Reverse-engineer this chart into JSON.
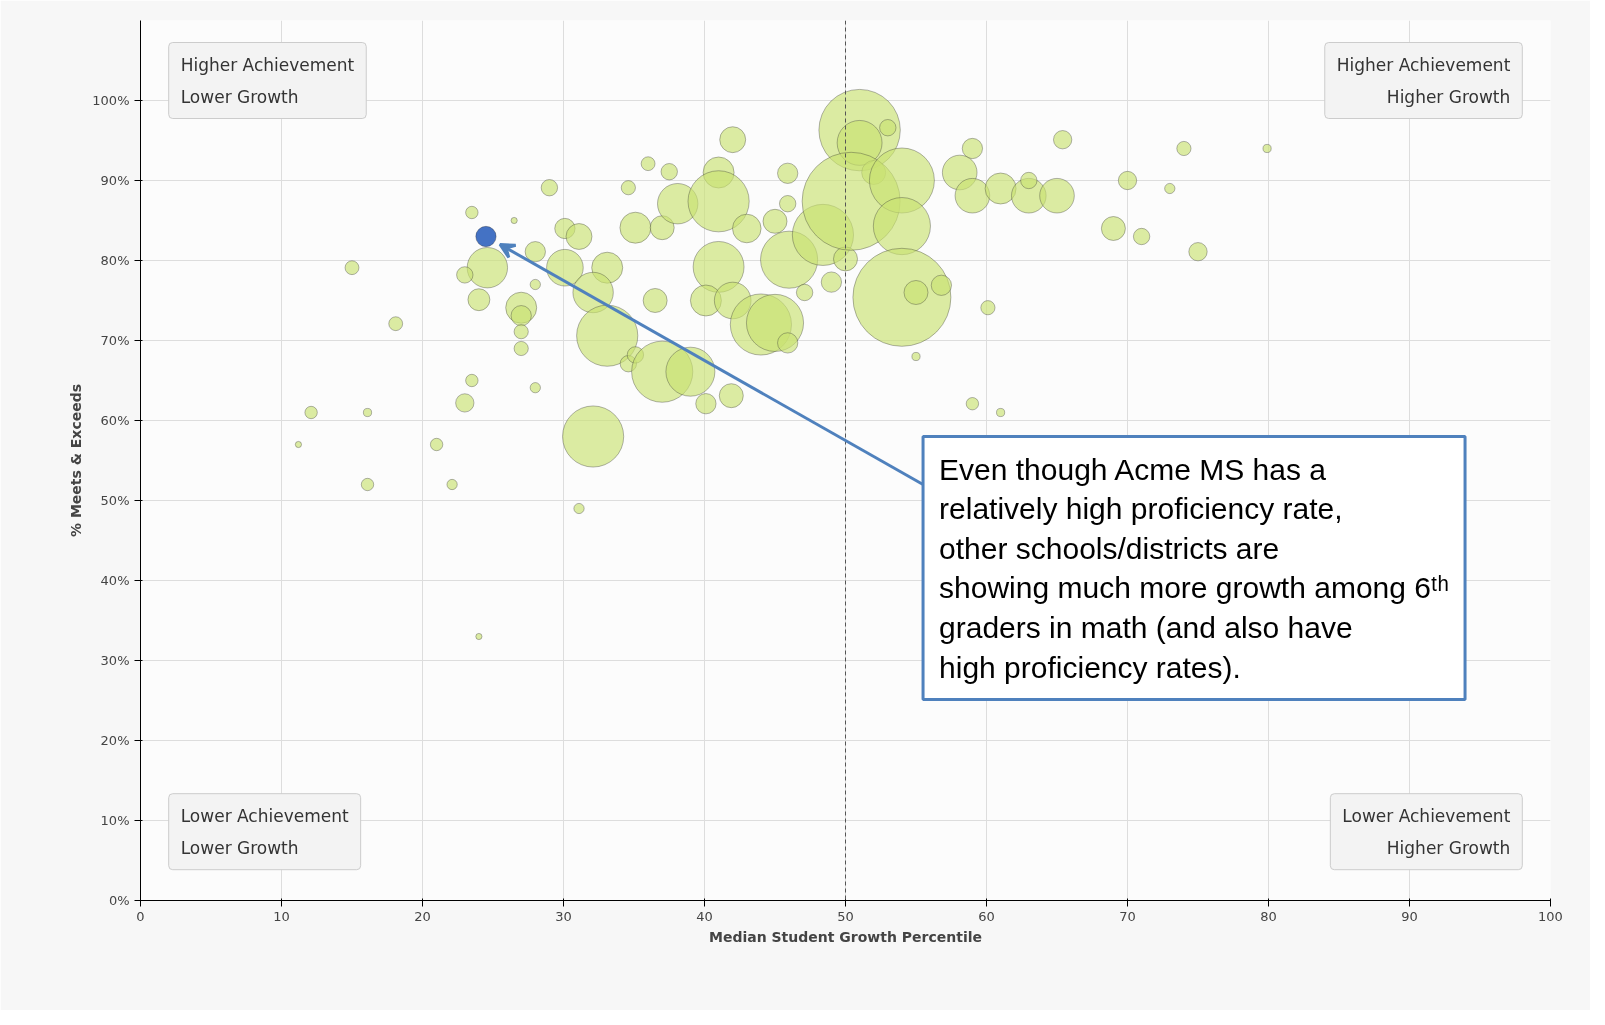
{
  "chart_data": {
    "type": "bubble",
    "xlabel": "Median Student Growth Percentile",
    "ylabel": "% Meets & Exceeds",
    "x": [
      15.0,
      18.1,
      12.1,
      11.2,
      16.1,
      16.1,
      21.0,
      22.1,
      24.0,
      23.0,
      23.5,
      23.5,
      24.6,
      23.0,
      24.0,
      26.5,
      28.0,
      27.0,
      27.0,
      27.0,
      27.0,
      28.0,
      28.0,
      29.0,
      30.1,
      30.1,
      31.1,
      32.1,
      31.1,
      33.1,
      32.1,
      33.1,
      34.6,
      35.1,
      35.1,
      34.6,
      36.0,
      37.5,
      37.0,
      38.1,
      36.5,
      37.0,
      39.0,
      40.1,
      41.9,
      41.0,
      42.0,
      41.0,
      41.0,
      40.1,
      42.0,
      44.0,
      45.0,
      43.0,
      45.0,
      45.9,
      45.9,
      46.0,
      47.1,
      45.9,
      48.4,
      50.0,
      49.0,
      51.0,
      51.0,
      52.0,
      50.4,
      54.0,
      54.0,
      54.0,
      55.0,
      56.8,
      53.0,
      55.0,
      59.0,
      58.1,
      59.0,
      61.0,
      63.0,
      63.0,
      65.0,
      65.4,
      60.1,
      59.0,
      61.0,
      69.0,
      70.0,
      71.0,
      73.0,
      74.0,
      75.0,
      79.9
    ],
    "series": [
      {
        "color": "#c9e272",
        "values": [
          79.1,
          72.1,
          61.0,
          57.0,
          61.0,
          52.0,
          57.0,
          52.0,
          33.0,
          62.2,
          65.0,
          86.0,
          79.1,
          78.2,
          75.1,
          85.0,
          81.1,
          74.1,
          73.1,
          71.1,
          69.0,
          64.1,
          77.0,
          89.1,
          79.1,
          84.0,
          83.0,
          58.0,
          49.0,
          79.1,
          76.0,
          70.6,
          67.1,
          68.2,
          84.1,
          89.1,
          92.1,
          91.1,
          84.1,
          87.1,
          75.0,
          66.1,
          66.1,
          62.1,
          63.1,
          91.0,
          95.1,
          87.4,
          79.2,
          75.0,
          75.0,
          72.0,
          72.2,
          84.0,
          84.9,
          90.9,
          87.1,
          80.1,
          76.0,
          69.7,
          83.2,
          80.2,
          77.3,
          96.3,
          94.7,
          91.0,
          87.4,
          90.0,
          84.3,
          75.4,
          76.0,
          76.9,
          96.6,
          68.0,
          94.0,
          91.0,
          88.1,
          89.0,
          88.1,
          90.0,
          88.1,
          95.1,
          74.1,
          62.1,
          61.0,
          84.0,
          90.0,
          83.0,
          89.0,
          94.0,
          81.1,
          94.0
        ],
        "sizes": [
          0.02,
          0.02,
          0.016,
          0.004,
          0.007,
          0.016,
          0.016,
          0.011,
          0.004,
          0.035,
          0.016,
          0.016,
          0.17,
          0.028,
          0.05,
          0.004,
          0.043,
          0.1,
          0.043,
          0.021,
          0.021,
          0.011,
          0.011,
          0.028,
          0.14,
          0.043,
          0.07,
          0.39,
          0.011,
          0.1,
          0.17,
          0.39,
          0.028,
          0.028,
          0.1,
          0.021,
          0.02,
          0.028,
          0.06,
          0.17,
          0.06,
          0.39,
          0.25,
          0.043,
          0.06,
          0.1,
          0.07,
          0.39,
          0.27,
          0.1,
          0.14,
          0.39,
          0.34,
          0.085,
          0.06,
          0.043,
          0.028,
          0.34,
          0.028,
          0.043,
          0.39,
          0.06,
          0.043,
          0.69,
          0.21,
          0.06,
          1.0,
          0.44,
          0.34,
          1.0,
          0.06,
          0.043,
          0.028,
          0.007,
          0.043,
          0.125,
          0.125,
          0.1,
          0.125,
          0.028,
          0.125,
          0.035,
          0.021,
          0.016,
          0.007,
          0.06,
          0.035,
          0.028,
          0.011,
          0.021,
          0.035,
          0.007
        ]
      },
      {
        "color": "#4472c4",
        "x": [
          24.5
        ],
        "values": [
          83.0
        ],
        "sizes": [
          0.043
        ]
      }
    ],
    "xlim": [
      0,
      100
    ],
    "ylim": [
      0,
      110
    ],
    "xticks": [
      0,
      10,
      20,
      30,
      40,
      50,
      60,
      70,
      80,
      90,
      100
    ],
    "yticks": [
      {
        "value": 0,
        "label": "0%"
      },
      {
        "value": 10,
        "label": "10%"
      },
      {
        "value": 20,
        "label": "20%"
      },
      {
        "value": 30,
        "label": "30%"
      },
      {
        "value": 40,
        "label": "40%"
      },
      {
        "value": 50,
        "label": "50%"
      },
      {
        "value": 60,
        "label": "60%"
      },
      {
        "value": 70,
        "label": "70%"
      },
      {
        "value": 80,
        "label": "80%"
      },
      {
        "value": 90,
        "label": "90%"
      },
      {
        "value": 100,
        "label": "100%"
      }
    ],
    "grid": true,
    "ref_lines": [
      {
        "axis": "x",
        "value": 50,
        "color": "#555555",
        "line_style": "dashed"
      }
    ],
    "annotations": [
      "Higher Achievement\nLower Growth",
      "Higher Achievement\nHigher Growth",
      "Lower Achievement\nLower Growth",
      "Lower Achievement\nHigher Growth",
      "Even though Acme MS has a relatively high proficiency rate, other schools/districts are showing much more growth among 6ᵗʰ graders in math (and also have high proficiency rates)."
    ]
  }
}
